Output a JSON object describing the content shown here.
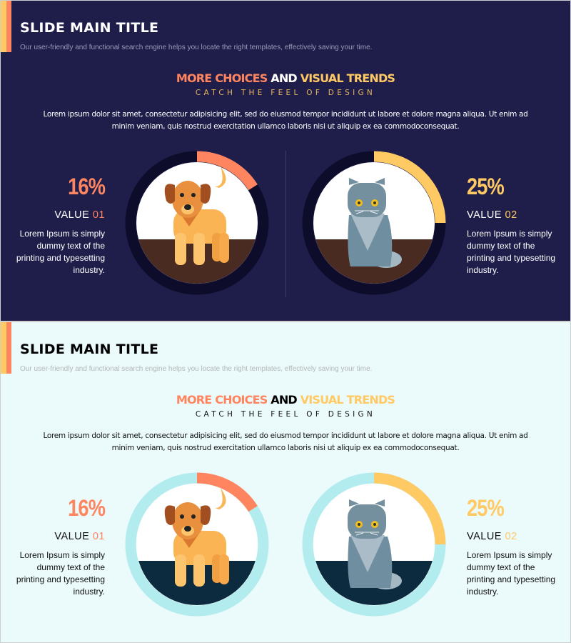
{
  "slides": [
    {
      "theme": "dark",
      "title": "SLIDE MAIN TITLE",
      "subtitle": "Our user-friendly and functional search engine helps you locate the right templates, effectively saving your time.",
      "headline": {
        "part1": "MORE CHOICES",
        "part2": " AND ",
        "part3": "VISUAL TRENDS"
      },
      "tagline": "CATCH THE FEEL OF DESIGN",
      "paragraph": "Lorem ipsum dolor sit amet, consectetur adipisicing elit, sed do eiusmod tempor incididunt ut labore et dolore magna aliqua. Ut enim ad minim veniam, quis nostrud exercitation ullamco laboris nisi ut aliquip ex ea commodoconsequat.",
      "stats": [
        {
          "percent_label": "16%",
          "percent": 16,
          "value_word": "VALUE ",
          "value_num": "01",
          "body": "Lorem Ipsum is simply dummy text of the printing and typesetting industry.",
          "color": "#ff8560",
          "animal": "dog"
        },
        {
          "percent_label": "25%",
          "percent": 25,
          "value_word": "VALUE ",
          "value_num": "02",
          "body": "Lorem Ipsum is simply dummy text of the printing and typesetting industry.",
          "color": "#ffc963",
          "animal": "cat"
        }
      ],
      "colors": {
        "background": "#1f1e4b",
        "title": "#ffffff",
        "subtitle": "#9a9ab8",
        "text": "#ffffff",
        "tagline": "#e9b65b",
        "ring_track": "#0d0c2b",
        "floor": "#4a2b22",
        "and": "#ffffff"
      }
    },
    {
      "theme": "light",
      "title": "SLIDE MAIN TITLE",
      "subtitle": "Our user-friendly and functional search engine helps you locate the right templates, effectively saving your time.",
      "headline": {
        "part1": "MORE CHOICES",
        "part2": " AND ",
        "part3": "VISUAL TRENDS"
      },
      "tagline": "CATCH THE FEEL OF DESIGN",
      "paragraph": "Lorem ipsum dolor sit amet, consectetur adipisicing elit, sed do eiusmod tempor incididunt ut labore et dolore magna aliqua. Ut enim ad minim veniam, quis nostrud exercitation ullamco laboris nisi ut aliquip ex ea commodoconsequat.",
      "stats": [
        {
          "percent_label": "16%",
          "percent": 16,
          "value_word": "VALUE ",
          "value_num": "01",
          "body": "Lorem Ipsum is simply dummy text of the printing and typesetting industry.",
          "color": "#ff8560",
          "animal": "dog"
        },
        {
          "percent_label": "25%",
          "percent": 25,
          "value_word": "VALUE ",
          "value_num": "02",
          "body": "Lorem Ipsum is simply dummy text of the printing and typesetting industry.",
          "color": "#ffc963",
          "animal": "cat"
        }
      ],
      "colors": {
        "background": "#ebfafa",
        "title": "#000000",
        "subtitle": "#b4b8ba",
        "text": "#111111",
        "tagline": "#111111",
        "ring_track": "#b3ecee",
        "floor": "#0d2b3e",
        "and": "#000000"
      }
    }
  ],
  "accent_colors": {
    "yellow": "#ffc963",
    "orange": "#ff8560"
  }
}
